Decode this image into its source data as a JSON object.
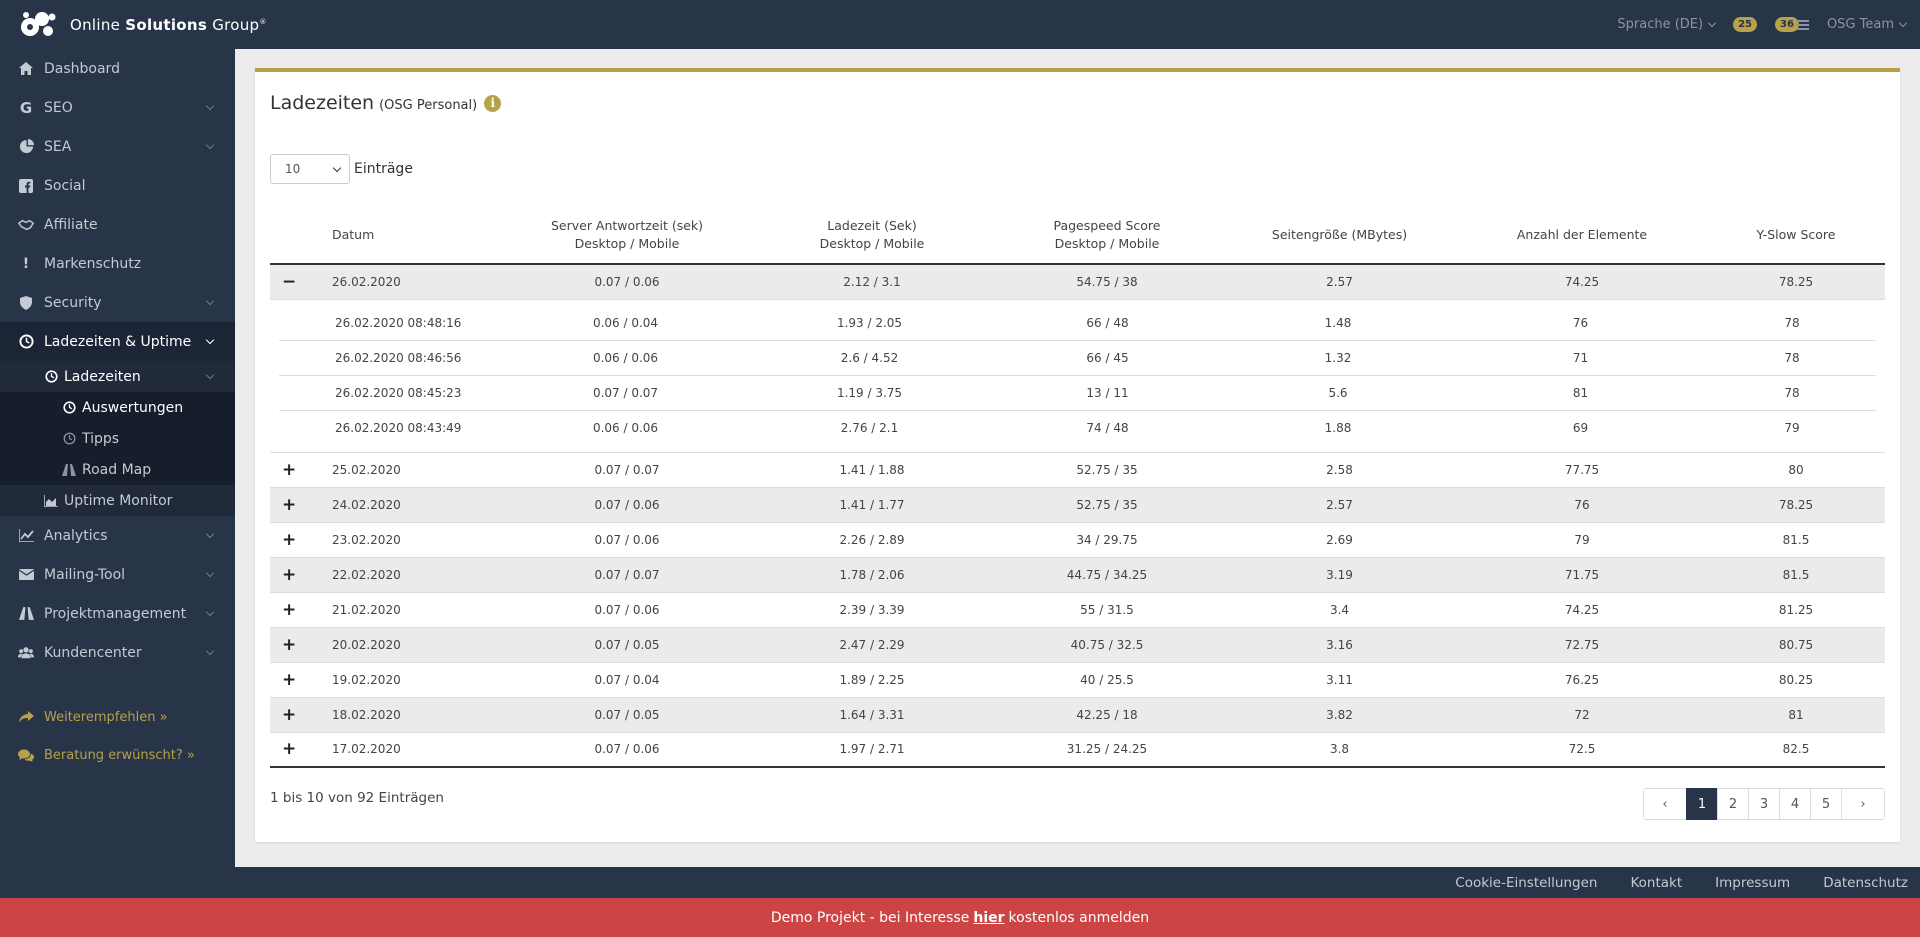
{
  "brand": {
    "name_prefix": "Online ",
    "name_bold": "Solutions",
    "name_suffix": " Group",
    "reg": "®"
  },
  "topbar": {
    "language": "Sprache (DE)",
    "badge1": "25",
    "badge2": "36",
    "user": "OSG Team"
  },
  "sidebar": {
    "items": [
      {
        "label": "Dashboard"
      },
      {
        "label": "SEO"
      },
      {
        "label": "SEA"
      },
      {
        "label": "Social"
      },
      {
        "label": "Affiliate"
      },
      {
        "label": "Markenschutz"
      },
      {
        "label": "Security"
      },
      {
        "label": "Ladezeiten & Uptime"
      },
      {
        "label": "Analytics"
      },
      {
        "label": "Mailing-Tool"
      },
      {
        "label": "Projektmanagement"
      },
      {
        "label": "Kundencenter"
      }
    ],
    "sub": {
      "ladezeiten": "Ladezeiten",
      "auswertungen": "Auswertungen",
      "tipps": "Tipps",
      "roadmap": "Road Map",
      "uptime": "Uptime Monitor"
    },
    "links": {
      "weiterempfehlen": "Weiterempfehlen »",
      "beratung": "Beratung erwünscht? »"
    }
  },
  "page": {
    "title": "Ladezeiten",
    "subtitle": "(OSG Personal)",
    "page_size": "10",
    "entries_label": "Einträge",
    "info": "1 bis 10 von 92 Einträgen"
  },
  "table": {
    "headers": {
      "datum": "Datum",
      "server_1": "Server Antwortzeit (sek)",
      "server_2": "Desktop / Mobile",
      "ladezeit_1": "Ladezeit (Sek)",
      "ladezeit_2": "Desktop / Mobile",
      "pagespeed_1": "Pagespeed Score",
      "pagespeed_2": "Desktop / Mobile",
      "groesse": "Seitengröße (MBytes)",
      "elemente": "Anzahl der Elemente",
      "yslow": "Y-Slow Score"
    },
    "expanded": {
      "toggle": "−",
      "date": "26.02.2020",
      "server": "0.07 / 0.06",
      "ladezeit": "2.12 / 3.1",
      "pagespeed": "54.75 / 38",
      "groesse": "2.57",
      "elemente": "74.25",
      "yslow": "78.25"
    },
    "details": [
      {
        "date": "26.02.2020 08:48:16",
        "server": "0.06 / 0.04",
        "ladezeit": "1.93 / 2.05",
        "pagespeed": "66 / 48",
        "groesse": "1.48",
        "elemente": "76",
        "yslow": "78"
      },
      {
        "date": "26.02.2020 08:46:56",
        "server": "0.06 / 0.06",
        "ladezeit": "2.6 / 4.52",
        "pagespeed": "66 / 45",
        "groesse": "1.32",
        "elemente": "71",
        "yslow": "78"
      },
      {
        "date": "26.02.2020 08:45:23",
        "server": "0.07 / 0.07",
        "ladezeit": "1.19 / 3.75",
        "pagespeed": "13 / 11",
        "groesse": "5.6",
        "elemente": "81",
        "yslow": "78"
      },
      {
        "date": "26.02.2020 08:43:49",
        "server": "0.06 / 0.06",
        "ladezeit": "2.76 / 2.1",
        "pagespeed": "74 / 48",
        "groesse": "1.88",
        "elemente": "69",
        "yslow": "79"
      }
    ],
    "rows": [
      {
        "toggle": "+",
        "date": "25.02.2020",
        "server": "0.07 / 0.07",
        "ladezeit": "1.41 / 1.88",
        "pagespeed": "52.75 / 35",
        "groesse": "2.58",
        "elemente": "77.75",
        "yslow": "80"
      },
      {
        "toggle": "+",
        "date": "24.02.2020",
        "server": "0.07 / 0.06",
        "ladezeit": "1.41 / 1.77",
        "pagespeed": "52.75 / 35",
        "groesse": "2.57",
        "elemente": "76",
        "yslow": "78.25"
      },
      {
        "toggle": "+",
        "date": "23.02.2020",
        "server": "0.07 / 0.06",
        "ladezeit": "2.26 / 2.89",
        "pagespeed": "34 / 29.75",
        "groesse": "2.69",
        "elemente": "79",
        "yslow": "81.5"
      },
      {
        "toggle": "+",
        "date": "22.02.2020",
        "server": "0.07 / 0.07",
        "ladezeit": "1.78 / 2.06",
        "pagespeed": "44.75 / 34.25",
        "groesse": "3.19",
        "elemente": "71.75",
        "yslow": "81.5"
      },
      {
        "toggle": "+",
        "date": "21.02.2020",
        "server": "0.07 / 0.06",
        "ladezeit": "2.39 / 3.39",
        "pagespeed": "55 / 31.5",
        "groesse": "3.4",
        "elemente": "74.25",
        "yslow": "81.25"
      },
      {
        "toggle": "+",
        "date": "20.02.2020",
        "server": "0.07 / 0.05",
        "ladezeit": "2.47 / 2.29",
        "pagespeed": "40.75 / 32.5",
        "groesse": "3.16",
        "elemente": "72.75",
        "yslow": "80.75"
      },
      {
        "toggle": "+",
        "date": "19.02.2020",
        "server": "0.07 / 0.04",
        "ladezeit": "1.89 / 2.25",
        "pagespeed": "40 / 25.5",
        "groesse": "3.11",
        "elemente": "76.25",
        "yslow": "80.25"
      },
      {
        "toggle": "+",
        "date": "18.02.2020",
        "server": "0.07 / 0.05",
        "ladezeit": "1.64 / 3.31",
        "pagespeed": "42.25 / 18",
        "groesse": "3.82",
        "elemente": "72",
        "yslow": "81"
      },
      {
        "toggle": "+",
        "date": "17.02.2020",
        "server": "0.07 / 0.06",
        "ladezeit": "1.97 / 2.71",
        "pagespeed": "31.25 / 24.25",
        "groesse": "3.8",
        "elemente": "72.5",
        "yslow": "82.5"
      }
    ]
  },
  "pagination": {
    "prev": "‹",
    "pages": [
      "1",
      "2",
      "3",
      "4",
      "5"
    ],
    "next": "›",
    "active": "1"
  },
  "footer": {
    "cookie": "Cookie-Einstellungen",
    "kontakt": "Kontakt",
    "impressum": "Impressum",
    "datenschutz": "Datenschutz"
  },
  "demo": {
    "before": "Demo Projekt - bei Interesse",
    "link": "hier",
    "after": "kostenlos anmelden"
  },
  "colors": {
    "accent": "#b7a14a",
    "navy": "#283447",
    "demo_red": "#cc4444"
  }
}
